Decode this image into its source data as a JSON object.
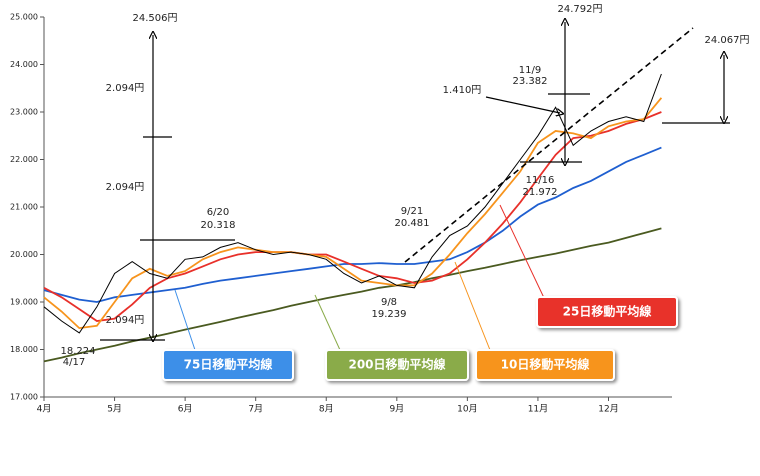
{
  "chart_data": {
    "type": "line",
    "x": [
      4.0,
      4.25,
      4.5,
      4.75,
      5.0,
      5.25,
      5.5,
      5.75,
      6.0,
      6.25,
      6.5,
      6.75,
      7.0,
      7.25,
      7.5,
      7.75,
      8.0,
      8.25,
      8.5,
      8.75,
      9.0,
      9.25,
      9.5,
      9.75,
      10.0,
      10.25,
      10.5,
      10.75,
      11.0,
      11.25,
      11.5,
      11.75,
      12.0,
      12.25,
      12.5,
      12.75
    ],
    "xlim": [
      4,
      12.9
    ],
    "xticks": [
      {
        "value": 4,
        "label": "4月"
      },
      {
        "value": 5,
        "label": "5月"
      },
      {
        "value": 6,
        "label": "6月"
      },
      {
        "value": 7,
        "label": "7月"
      },
      {
        "value": 8,
        "label": "8月"
      },
      {
        "value": 9,
        "label": "9月"
      },
      {
        "value": 10,
        "label": "10月"
      },
      {
        "value": 11,
        "label": "11月"
      },
      {
        "value": 12,
        "label": "12月"
      }
    ],
    "ylim": [
      17000,
      25000
    ],
    "yticks": [
      {
        "value": 17000,
        "label": "17.000"
      },
      {
        "value": 18000,
        "label": "18.000"
      },
      {
        "value": 19000,
        "label": "19.000"
      },
      {
        "value": 20000,
        "label": "20.000"
      },
      {
        "value": 21000,
        "label": "21.000"
      },
      {
        "value": 22000,
        "label": "22.000"
      },
      {
        "value": 23000,
        "label": "23.000"
      },
      {
        "value": 24000,
        "label": "24.000"
      },
      {
        "value": 25000,
        "label": "25.000"
      }
    ],
    "series": [
      {
        "color": "#000000",
        "values": [
          18900,
          18600,
          18350,
          18900,
          19600,
          19850,
          19600,
          19500,
          19900,
          19950,
          20150,
          20250,
          20100,
          20000,
          20050,
          20000,
          19900,
          19600,
          19400,
          19550,
          19350,
          19300,
          19950,
          20400,
          20600,
          21000,
          21500,
          22000,
          22500,
          23100,
          22300,
          22600,
          22800,
          22900,
          22800,
          23800
        ]
      },
      {
        "name": "75日移動平均線",
        "color": "#1f5fd0",
        "values": [
          19250,
          19150,
          19050,
          19000,
          19100,
          19150,
          19200,
          19250,
          19300,
          19380,
          19450,
          19500,
          19550,
          19600,
          19650,
          19700,
          19750,
          19800,
          19800,
          19820,
          19800,
          19800,
          19850,
          19900,
          20050,
          20250,
          20500,
          20800,
          21050,
          21200,
          21400,
          21550,
          21750,
          21950,
          22100,
          22250
        ]
      },
      {
        "name": "200日移動平均線",
        "color": "#4a5a20",
        "values": [
          17750,
          17830,
          17920,
          18000,
          18080,
          18170,
          18250,
          18330,
          18420,
          18500,
          18580,
          18670,
          18750,
          18830,
          18920,
          19000,
          19080,
          19150,
          19220,
          19300,
          19350,
          19420,
          19500,
          19570,
          19650,
          19720,
          19800,
          19880,
          19950,
          20020,
          20100,
          20180,
          20250,
          20350,
          20450,
          20550
        ]
      },
      {
        "name": "10日移動平均線",
        "color": "#f7941d",
        "values": [
          19100,
          18800,
          18450,
          18500,
          19000,
          19500,
          19700,
          19550,
          19650,
          19900,
          20050,
          20150,
          20100,
          20050,
          20050,
          20000,
          19950,
          19700,
          19450,
          19400,
          19350,
          19350,
          19600,
          20000,
          20450,
          20850,
          21300,
          21750,
          22350,
          22600,
          22550,
          22450,
          22700,
          22800,
          22850,
          23300
        ]
      },
      {
        "name": "25日移動平均線",
        "color": "#e8302a",
        "values": [
          19300,
          19100,
          18850,
          18600,
          18650,
          18950,
          19300,
          19500,
          19600,
          19750,
          19900,
          20000,
          20050,
          20050,
          20050,
          20000,
          20000,
          19850,
          19700,
          19550,
          19500,
          19400,
          19450,
          19600,
          19900,
          20250,
          20650,
          21100,
          21600,
          22100,
          22450,
          22500,
          22600,
          22750,
          22850,
          23000
        ]
      }
    ],
    "annotations": [
      "24.506円",
      "2.094円",
      "2.094円",
      "2.094円",
      "6/20",
      "20.318",
      "18.224",
      "4/17",
      "9/8",
      "19.239",
      "9/21",
      "20.481",
      "11/9",
      "23.382",
      "1.410円",
      "11/16",
      "21.972",
      "24.792円",
      "24.067円"
    ]
  }
}
